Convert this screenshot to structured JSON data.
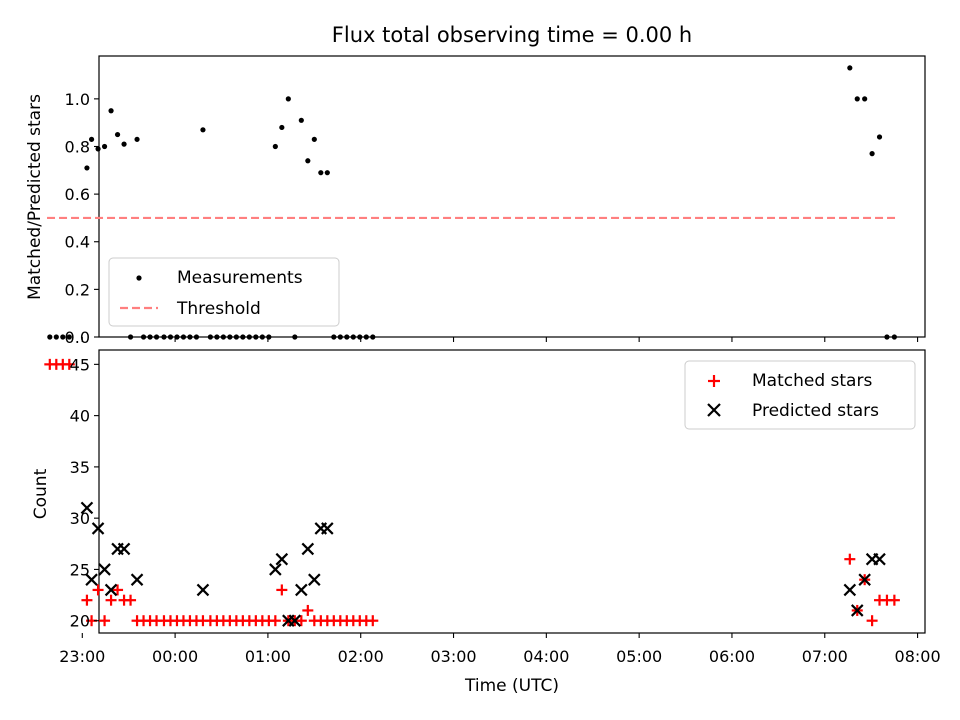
{
  "title": "Flux total observing time = 0.00 h",
  "chart_data": [
    {
      "type": "scatter",
      "ylabel": "Matched/Predicted stars",
      "ylim": [
        0,
        1.18
      ],
      "xlim": [
        -0.82,
        8.08
      ],
      "xtick_labels": [
        "23:00",
        "00:00",
        "01:00",
        "02:00",
        "03:00",
        "04:00",
        "05:00",
        "06:00",
        "07:00",
        "08:00"
      ],
      "xtick_hours": [
        -1,
        0,
        1,
        2,
        3,
        4,
        5,
        6,
        7,
        8
      ],
      "yticks": [
        0.0,
        0.2,
        0.4,
        0.6,
        0.8,
        1.0
      ],
      "ytick_labels": [
        "0.0",
        "0.2",
        "0.4",
        "0.6",
        "0.8",
        "1.0"
      ],
      "legend_position": "lower-left",
      "series": [
        {
          "name": "Measurements",
          "marker": "dot",
          "color": "#000000",
          "x_hours": [
            -1.35,
            -1.28,
            -1.21,
            -1.14,
            -0.95,
            -0.9,
            -0.83,
            -0.76,
            -0.69,
            -0.62,
            -0.55,
            -0.48,
            -0.41,
            -0.34,
            -0.27,
            -0.2,
            -0.12,
            -0.05,
            0.02,
            0.09,
            0.16,
            0.23,
            0.3,
            0.38,
            0.45,
            0.52,
            0.59,
            0.66,
            0.73,
            0.8,
            0.87,
            0.94,
            1.01,
            1.08,
            1.15,
            1.22,
            1.29,
            1.36,
            1.43,
            1.5,
            1.57,
            1.64,
            1.71,
            1.78,
            1.85,
            1.92,
            1.99,
            2.06,
            2.13,
            7.27,
            7.35,
            7.43,
            7.51,
            7.59,
            7.67,
            7.75
          ],
          "y": [
            0.0,
            0.0,
            0.0,
            0.0,
            0.71,
            0.83,
            0.79,
            0.8,
            0.95,
            0.85,
            0.81,
            0.0,
            0.83,
            0.0,
            0.0,
            0.0,
            0.0,
            0.0,
            0.0,
            0.0,
            0.0,
            0.0,
            0.87,
            0.0,
            0.0,
            0.0,
            0.0,
            0.0,
            0.0,
            0.0,
            0.0,
            0.0,
            0.0,
            0.8,
            0.88,
            1.0,
            0.0,
            0.91,
            0.74,
            0.83,
            0.69,
            0.69,
            0.0,
            0.0,
            0.0,
            0.0,
            0.0,
            0.0,
            0.0,
            1.13,
            1.0,
            1.0,
            0.77,
            0.84,
            0.0,
            0.0
          ]
        },
        {
          "name": "Threshold",
          "marker": "dashed-line",
          "color": "#ff7f7f",
          "x_hours": [
            -1.38,
            7.78
          ],
          "y": [
            0.5,
            0.5
          ]
        }
      ]
    },
    {
      "type": "scatter",
      "xlabel": "Time (UTC)",
      "ylabel": "Count",
      "ylim": [
        18.8,
        46.4
      ],
      "xlim": [
        -0.82,
        8.08
      ],
      "xtick_labels": [
        "23:00",
        "00:00",
        "01:00",
        "02:00",
        "03:00",
        "04:00",
        "05:00",
        "06:00",
        "07:00",
        "08:00"
      ],
      "xtick_hours": [
        -1,
        0,
        1,
        2,
        3,
        4,
        5,
        6,
        7,
        8
      ],
      "yticks": [
        20,
        25,
        30,
        35,
        40,
        45
      ],
      "ytick_labels": [
        "20",
        "25",
        "30",
        "35",
        "40",
        "45"
      ],
      "legend_position": "upper-right",
      "series": [
        {
          "name": "Matched stars",
          "marker": "plus",
          "color": "#ff0000",
          "x_hours": [
            -1.35,
            -1.28,
            -1.21,
            -1.14,
            -0.95,
            -0.9,
            -0.83,
            -0.76,
            -0.69,
            -0.62,
            -0.55,
            -0.48,
            -0.41,
            -0.34,
            -0.27,
            -0.2,
            -0.12,
            -0.05,
            0.02,
            0.09,
            0.16,
            0.23,
            0.3,
            0.38,
            0.45,
            0.52,
            0.59,
            0.66,
            0.73,
            0.8,
            0.87,
            0.94,
            1.01,
            1.08,
            1.15,
            1.22,
            1.29,
            1.36,
            1.43,
            1.5,
            1.57,
            1.64,
            1.71,
            1.78,
            1.85,
            1.92,
            1.99,
            2.06,
            2.13,
            7.27,
            7.35,
            7.43,
            7.51,
            7.59,
            7.67,
            7.75
          ],
          "y": [
            45,
            45,
            45,
            45,
            22,
            20,
            23,
            20,
            22,
            23,
            22,
            22,
            20,
            20,
            20,
            20,
            20,
            20,
            20,
            20,
            20,
            20,
            20,
            20,
            20,
            20,
            20,
            20,
            20,
            20,
            20,
            20,
            20,
            20,
            23,
            20,
            20,
            20,
            21,
            20,
            20,
            20,
            20,
            20,
            20,
            20,
            20,
            20,
            20,
            26,
            21,
            24,
            20,
            22,
            22,
            22
          ]
        },
        {
          "name": "Predicted stars",
          "marker": "x",
          "color": "#000000",
          "x_hours": [
            -0.95,
            -0.9,
            -0.83,
            -0.76,
            -0.69,
            -0.62,
            -0.55,
            -0.41,
            0.3,
            1.08,
            1.15,
            1.22,
            1.29,
            1.36,
            1.43,
            1.5,
            1.57,
            1.64,
            7.27,
            7.35,
            7.43,
            7.51,
            7.59
          ],
          "y": [
            31,
            24,
            29,
            25,
            23,
            27,
            27,
            24,
            23,
            25,
            26,
            20,
            20,
            23,
            27,
            24,
            29,
            29,
            23,
            21,
            24,
            26,
            26
          ]
        }
      ]
    }
  ]
}
